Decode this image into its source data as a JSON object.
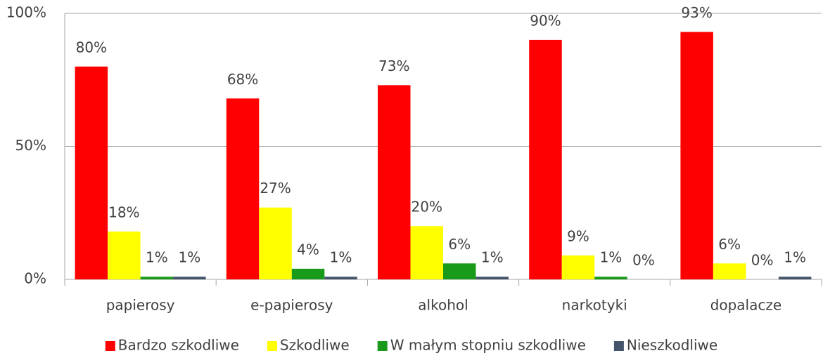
{
  "chart_data": {
    "type": "bar",
    "categories": [
      "papierosy",
      "e-papierosy",
      "alkohol",
      "narkotyki",
      "dopalacze"
    ],
    "series": [
      {
        "name": "Bardzo szkodliwe",
        "color": "#ff0000",
        "values": [
          80,
          68,
          73,
          90,
          93
        ],
        "value_labels": [
          "80%",
          "68%",
          "73%",
          "90%",
          "93%"
        ]
      },
      {
        "name": "Szkodliwe",
        "color": "#ffff00",
        "values": [
          18,
          27,
          20,
          9,
          6
        ],
        "value_labels": [
          "18%",
          "27%",
          "20%",
          "9%",
          "6%"
        ]
      },
      {
        "name": "W małym stopniu szkodliwe",
        "color": "#1a9a1a",
        "values": [
          1,
          4,
          6,
          1,
          0
        ],
        "value_labels": [
          "1%",
          "4%",
          "6%",
          "1%",
          "0%"
        ]
      },
      {
        "name": "Nieszkodliwe",
        "color": "#44546a",
        "values": [
          1,
          1,
          1,
          0,
          1
        ],
        "value_labels": [
          "1%",
          "1%",
          "1%",
          "0%",
          "1%"
        ]
      }
    ],
    "ylim": [
      0,
      100
    ],
    "yticks": [
      {
        "value": 0,
        "label": "0%"
      },
      {
        "value": 50,
        "label": "50%"
      },
      {
        "value": 100,
        "label": "100%"
      }
    ],
    "grid": true,
    "legend": "bottom"
  }
}
